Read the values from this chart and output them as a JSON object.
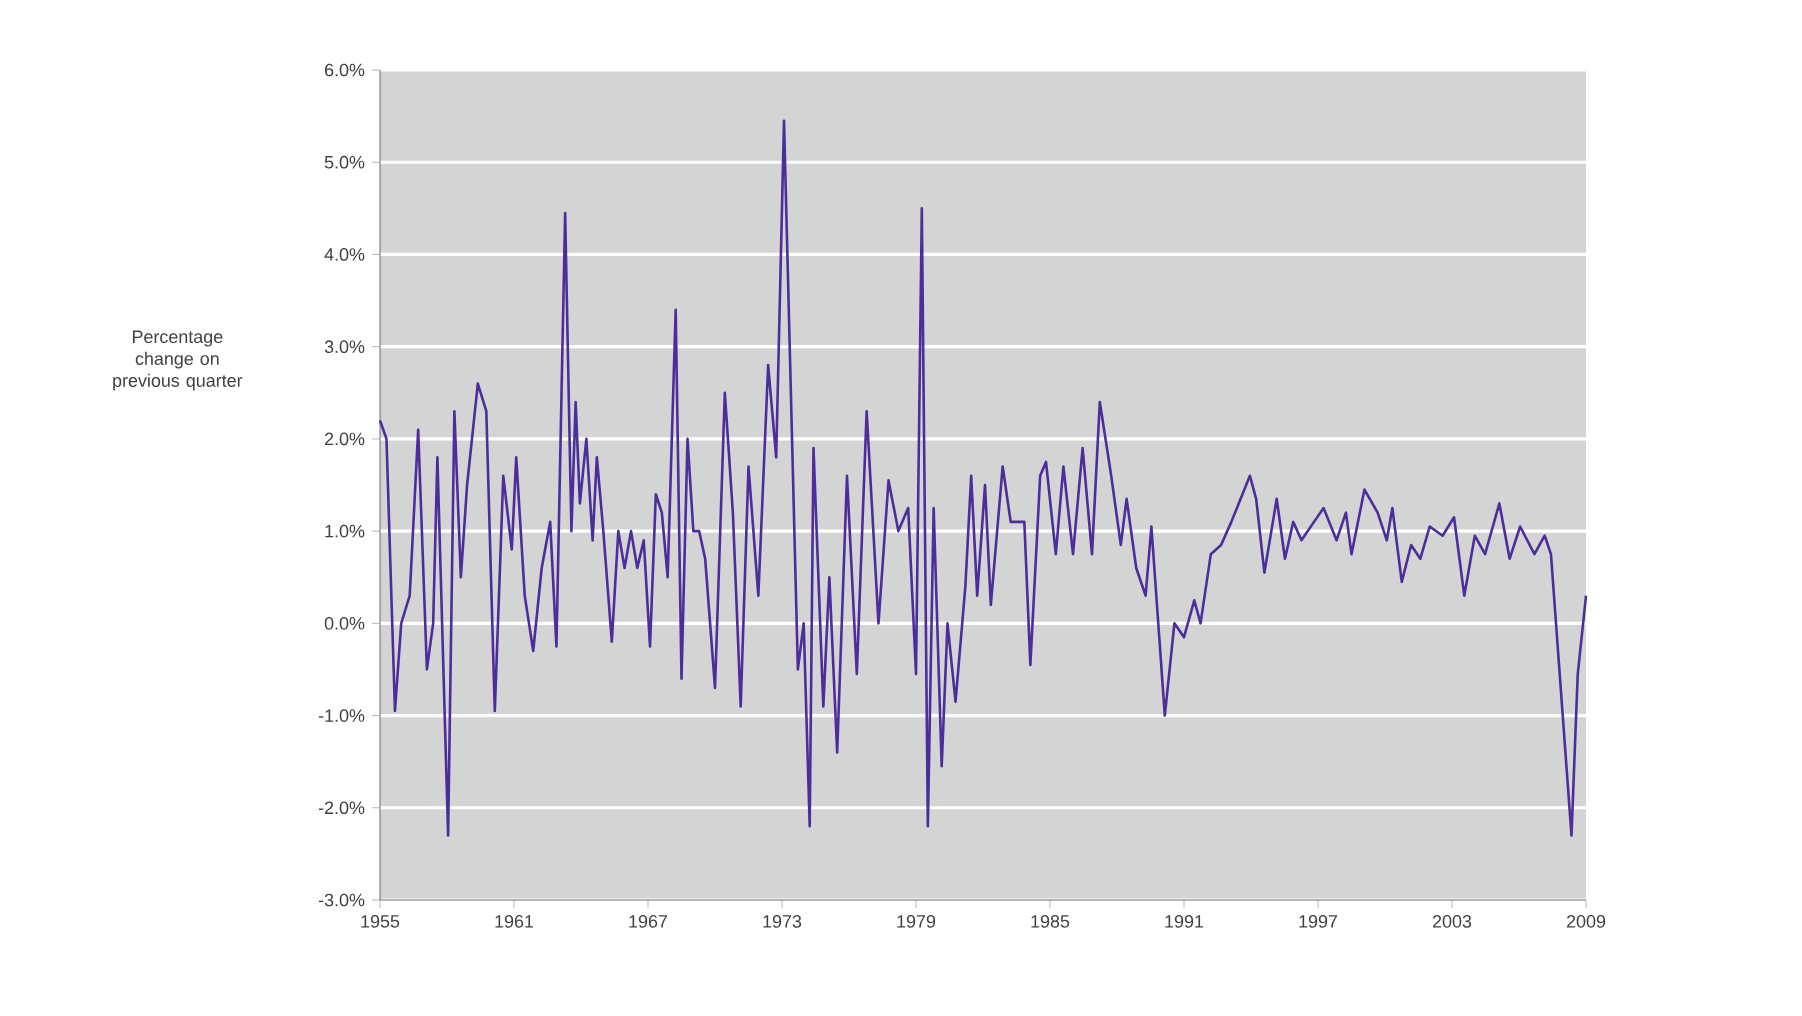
{
  "chart_data": {
    "type": "line",
    "ylabel": "Percentage change on previous quarter",
    "x": [
      1955.0,
      1955.29,
      1955.67,
      1955.95,
      1956.33,
      1956.71,
      1957.1,
      1957.38,
      1957.57,
      1958.05,
      1958.33,
      1958.62,
      1958.9,
      1959.38,
      1959.76,
      1960.14,
      1960.52,
      1960.9,
      1961.1,
      1961.48,
      1961.86,
      1962.24,
      1962.62,
      1962.9,
      1963.29,
      1963.57,
      1963.76,
      1963.95,
      1964.24,
      1964.52,
      1964.71,
      1965.0,
      1965.38,
      1965.67,
      1965.95,
      1966.24,
      1966.52,
      1966.81,
      1967.09,
      1967.35,
      1967.62,
      1967.88,
      1968.24,
      1968.5,
      1968.77,
      1969.03,
      1969.29,
      1969.56,
      1970.0,
      1970.44,
      1970.8,
      1971.15,
      1971.5,
      1971.94,
      1972.38,
      1972.74,
      1973.09,
      1973.71,
      1973.97,
      1974.24,
      1974.41,
      1974.85,
      1975.12,
      1975.47,
      1975.91,
      1976.35,
      1976.79,
      1977.32,
      1977.77,
      1978.21,
      1978.65,
      1979.0,
      1979.26,
      1979.53,
      1979.79,
      1980.15,
      1980.41,
      1980.77,
      1981.21,
      1981.47,
      1981.74,
      1982.09,
      1982.35,
      1982.88,
      1983.24,
      1983.85,
      1984.12,
      1984.56,
      1984.82,
      1985.26,
      1985.6,
      1986.03,
      1986.46,
      1986.88,
      1987.23,
      1987.74,
      1988.17,
      1988.43,
      1988.86,
      1989.28,
      1989.54,
      1990.14,
      1990.57,
      1991.0,
      1991.46,
      1991.74,
      1992.2,
      1992.66,
      1993.12,
      1993.95,
      1994.23,
      1994.6,
      1995.15,
      1995.52,
      1995.89,
      1996.26,
      1996.82,
      1997.25,
      1997.83,
      1998.25,
      1998.5,
      1999.08,
      1999.67,
      2000.08,
      2000.33,
      2000.75,
      2001.17,
      2001.58,
      2002.0,
      2002.58,
      2003.09,
      2003.55,
      2004.02,
      2004.48,
      2005.12,
      2005.58,
      2006.05,
      2006.69,
      2007.15,
      2007.43,
      2008.35,
      2008.63,
      2009.0
    ],
    "series": [
      {
        "color": "#4b2e9b",
        "values": [
          2.2,
          2.0,
          -0.95,
          0.0,
          0.3,
          2.1,
          -0.5,
          0.0,
          1.8,
          -2.3,
          2.3,
          0.5,
          1.5,
          2.6,
          2.3,
          -0.95,
          1.6,
          0.8,
          1.8,
          0.3,
          -0.3,
          0.6,
          1.1,
          -0.25,
          4.45,
          1.0,
          2.4,
          1.3,
          2.0,
          0.9,
          1.8,
          1.0,
          -0.2,
          1.0,
          0.6,
          1.0,
          0.6,
          0.9,
          -0.25,
          1.4,
          1.2,
          0.5,
          3.4,
          -0.6,
          2.0,
          1.0,
          1.0,
          0.7,
          -0.7,
          2.5,
          1.2,
          -0.9,
          1.7,
          0.3,
          2.8,
          1.8,
          5.45,
          -0.5,
          0.0,
          -2.2,
          1.9,
          -0.9,
          0.5,
          -1.4,
          1.6,
          -0.55,
          2.3,
          0.0,
          1.55,
          1.0,
          1.25,
          -0.55,
          4.5,
          -2.2,
          1.25,
          -1.55,
          0.0,
          -0.85,
          0.4,
          1.6,
          0.3,
          1.5,
          0.2,
          1.7,
          1.1,
          1.1,
          -0.45,
          1.6,
          1.75,
          0.75,
          1.7,
          0.75,
          1.9,
          0.75,
          2.4,
          1.6,
          0.85,
          1.35,
          0.6,
          0.3,
          1.05,
          -1.0,
          0.0,
          -0.15,
          0.25,
          0.0,
          0.75,
          0.85,
          1.1,
          1.6,
          1.35,
          0.55,
          1.35,
          0.7,
          1.1,
          0.9,
          1.1,
          1.25,
          0.9,
          1.2,
          0.75,
          1.45,
          1.2,
          0.9,
          1.25,
          0.45,
          0.85,
          0.7,
          1.05,
          0.95,
          1.15,
          0.3,
          0.95,
          0.75,
          1.3,
          0.7,
          1.05,
          0.75,
          0.95,
          0.75,
          -2.3,
          -0.55,
          0.3
        ]
      }
    ],
    "xlim": [
      1955,
      2009
    ],
    "xticks": [
      1955,
      1961,
      1967,
      1973,
      1979,
      1985,
      1991,
      1997,
      2003,
      2009
    ],
    "ylim": [
      -3,
      6
    ],
    "yticks": [
      {
        "value": 6,
        "label": "6.0%"
      },
      {
        "value": 5,
        "label": "5.0%"
      },
      {
        "value": 4,
        "label": "4.0%"
      },
      {
        "value": 3,
        "label": "3.0%"
      },
      {
        "value": 2,
        "label": "2.0%"
      },
      {
        "value": 1,
        "label": "1.0%"
      },
      {
        "value": 0,
        "label": "0.0%"
      },
      {
        "value": -1,
        "label": "-1.0%"
      },
      {
        "value": -2,
        "label": "-2.0%"
      },
      {
        "value": -3,
        "label": "-3.0%"
      }
    ],
    "grid": "y",
    "marker": "none",
    "line_style": "solid"
  }
}
